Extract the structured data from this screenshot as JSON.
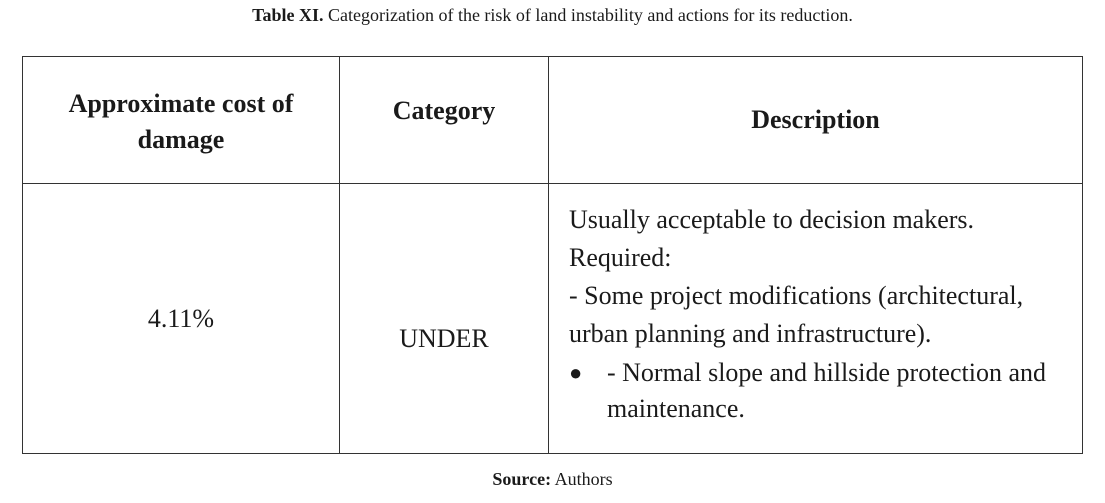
{
  "caption": {
    "label": "Table XI.",
    "text": "Categorization of the risk of land instability and actions for its reduction."
  },
  "table": {
    "headers": {
      "cost": "Approximate cost of damage",
      "category": "Category",
      "description": "Description"
    },
    "row": {
      "cost": "4.11%",
      "category": "UNDER",
      "description_lines": [
        "Usually acceptable to decision makers.",
        "Required:",
        "- Some project modifications (architectural, urban planning and infrastructure)."
      ],
      "bullet": {
        "marker": "●",
        "text": "- Normal slope and hillside protection and maintenance."
      }
    }
  },
  "source": {
    "label": "Source:",
    "text": "Authors"
  }
}
